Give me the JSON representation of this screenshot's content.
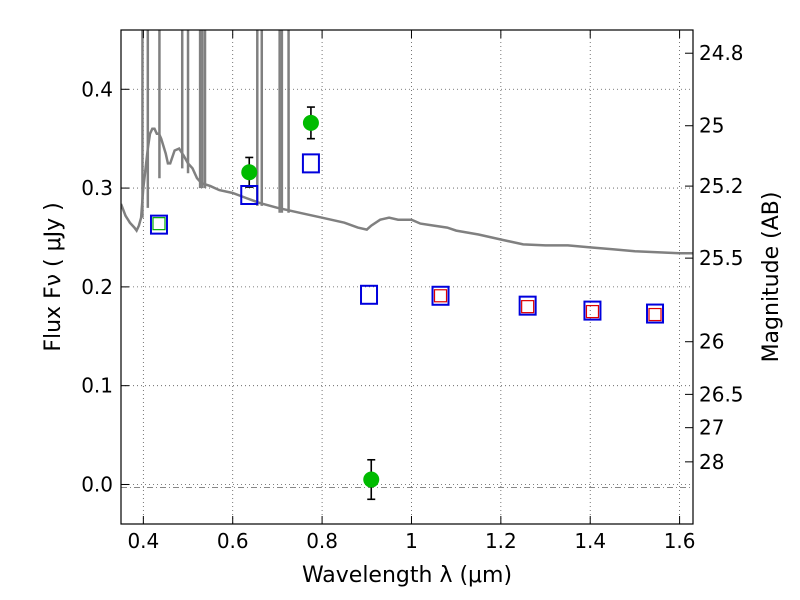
{
  "chart_data": {
    "type": "scatter",
    "xlabel": "Wavelength  λ (μm)",
    "ylabel": "Flux  Fν  ( μJy )",
    "ylabel_right": "Magnitude (AB)",
    "xlim": [
      0.35,
      1.63
    ],
    "ylim": [
      -0.04,
      0.46
    ],
    "xticks": [
      0.4,
      0.6,
      0.8,
      1.0,
      1.2,
      1.4,
      1.6
    ],
    "xtick_labels": [
      "0.4",
      "0.6",
      "0.8",
      "1",
      "1.2",
      "1.4",
      "1.6"
    ],
    "yticks": [
      0.0,
      0.1,
      0.2,
      0.3,
      0.4
    ],
    "ytick_labels": [
      "0.0",
      "0.1",
      "0.2",
      "0.3",
      "0.4"
    ],
    "right_ticks": [
      {
        "label": "24.8",
        "flux": 0.4365
      },
      {
        "label": "25",
        "flux": 0.3631
      },
      {
        "label": "25.2",
        "flux": 0.302
      },
      {
        "label": "25.5",
        "flux": 0.2291
      },
      {
        "label": "26",
        "flux": 0.1445
      },
      {
        "label": "26.5",
        "flux": 0.0912
      },
      {
        "label": "27",
        "flux": 0.0575
      },
      {
        "label": "28",
        "flux": 0.0229
      }
    ],
    "grid": true,
    "colors": {
      "observed": "#00bb00",
      "model": "#0000dd",
      "red_points": "#dd0000",
      "green_box": "#00aa00",
      "spectrum": "#808080"
    },
    "series": [
      {
        "marker": "filled-circle-errorbar",
        "points": [
          {
            "x": 0.637,
            "y": 0.316,
            "err": 0.015
          },
          {
            "x": 0.775,
            "y": 0.366,
            "err": 0.016
          },
          {
            "x": 0.91,
            "y": 0.005,
            "err": 0.02
          }
        ]
      },
      {
        "marker": "open-square-large",
        "points": [
          {
            "x": 0.435,
            "y": 0.263
          },
          {
            "x": 0.637,
            "y": 0.293
          },
          {
            "x": 0.775,
            "y": 0.325
          },
          {
            "x": 0.905,
            "y": 0.192
          },
          {
            "x": 1.065,
            "y": 0.191
          },
          {
            "x": 1.26,
            "y": 0.181
          },
          {
            "x": 1.405,
            "y": 0.176
          },
          {
            "x": 1.545,
            "y": 0.173
          }
        ]
      },
      {
        "marker": "open-square-small",
        "points": [
          {
            "x": 1.065,
            "y": 0.191
          },
          {
            "x": 1.26,
            "y": 0.18
          },
          {
            "x": 1.405,
            "y": 0.175
          },
          {
            "x": 1.545,
            "y": 0.172
          }
        ]
      },
      {
        "marker": "open-square-small-green",
        "points": [
          {
            "x": 0.435,
            "y": 0.264
          }
        ]
      },
      {
        "marker": "line",
        "points": [
          [
            0.35,
            0.284
          ],
          [
            0.36,
            0.272
          ],
          [
            0.37,
            0.265
          ],
          [
            0.38,
            0.26
          ],
          [
            0.385,
            0.257
          ],
          [
            0.39,
            0.262
          ],
          [
            0.395,
            0.27
          ],
          [
            0.4,
            0.3
          ],
          [
            0.405,
            0.32
          ],
          [
            0.41,
            0.34
          ],
          [
            0.415,
            0.355
          ],
          [
            0.42,
            0.36
          ],
          [
            0.425,
            0.36
          ],
          [
            0.43,
            0.355
          ],
          [
            0.435,
            0.355
          ],
          [
            0.44,
            0.35
          ],
          [
            0.45,
            0.335
          ],
          [
            0.455,
            0.325
          ],
          [
            0.46,
            0.325
          ],
          [
            0.47,
            0.338
          ],
          [
            0.48,
            0.34
          ],
          [
            0.49,
            0.333
          ],
          [
            0.5,
            0.325
          ],
          [
            0.51,
            0.32
          ],
          [
            0.52,
            0.31
          ],
          [
            0.53,
            0.305
          ],
          [
            0.55,
            0.302
          ],
          [
            0.57,
            0.298
          ],
          [
            0.6,
            0.295
          ],
          [
            0.63,
            0.29
          ],
          [
            0.66,
            0.285
          ],
          [
            0.7,
            0.28
          ],
          [
            0.75,
            0.275
          ],
          [
            0.8,
            0.27
          ],
          [
            0.85,
            0.265
          ],
          [
            0.88,
            0.26
          ],
          [
            0.9,
            0.258
          ],
          [
            0.91,
            0.262
          ],
          [
            0.93,
            0.268
          ],
          [
            0.95,
            0.27
          ],
          [
            0.97,
            0.268
          ],
          [
            1.0,
            0.268
          ],
          [
            1.02,
            0.264
          ],
          [
            1.05,
            0.262
          ],
          [
            1.08,
            0.26
          ],
          [
            1.1,
            0.257
          ],
          [
            1.15,
            0.253
          ],
          [
            1.2,
            0.248
          ],
          [
            1.25,
            0.243
          ],
          [
            1.3,
            0.242
          ],
          [
            1.35,
            0.242
          ],
          [
            1.4,
            0.24
          ],
          [
            1.45,
            0.238
          ],
          [
            1.5,
            0.236
          ],
          [
            1.55,
            0.235
          ],
          [
            1.6,
            0.234
          ],
          [
            1.63,
            0.234
          ]
        ],
        "spikes": [
          {
            "x": 0.398,
            "bottom": 0.27
          },
          {
            "x": 0.41,
            "bottom": 0.28
          },
          {
            "x": 0.436,
            "bottom": 0.31
          },
          {
            "x": 0.487,
            "bottom": 0.32
          },
          {
            "x": 0.5,
            "bottom": 0.315
          },
          {
            "x": 0.527,
            "bottom": 0.3
          },
          {
            "x": 0.532,
            "bottom": 0.3
          },
          {
            "x": 0.538,
            "bottom": 0.3
          },
          {
            "x": 0.655,
            "bottom": 0.282
          },
          {
            "x": 0.665,
            "bottom": 0.282
          },
          {
            "x": 0.705,
            "bottom": 0.275
          },
          {
            "x": 0.71,
            "bottom": 0.275
          },
          {
            "x": 0.725,
            "bottom": 0.275
          }
        ]
      }
    ]
  }
}
